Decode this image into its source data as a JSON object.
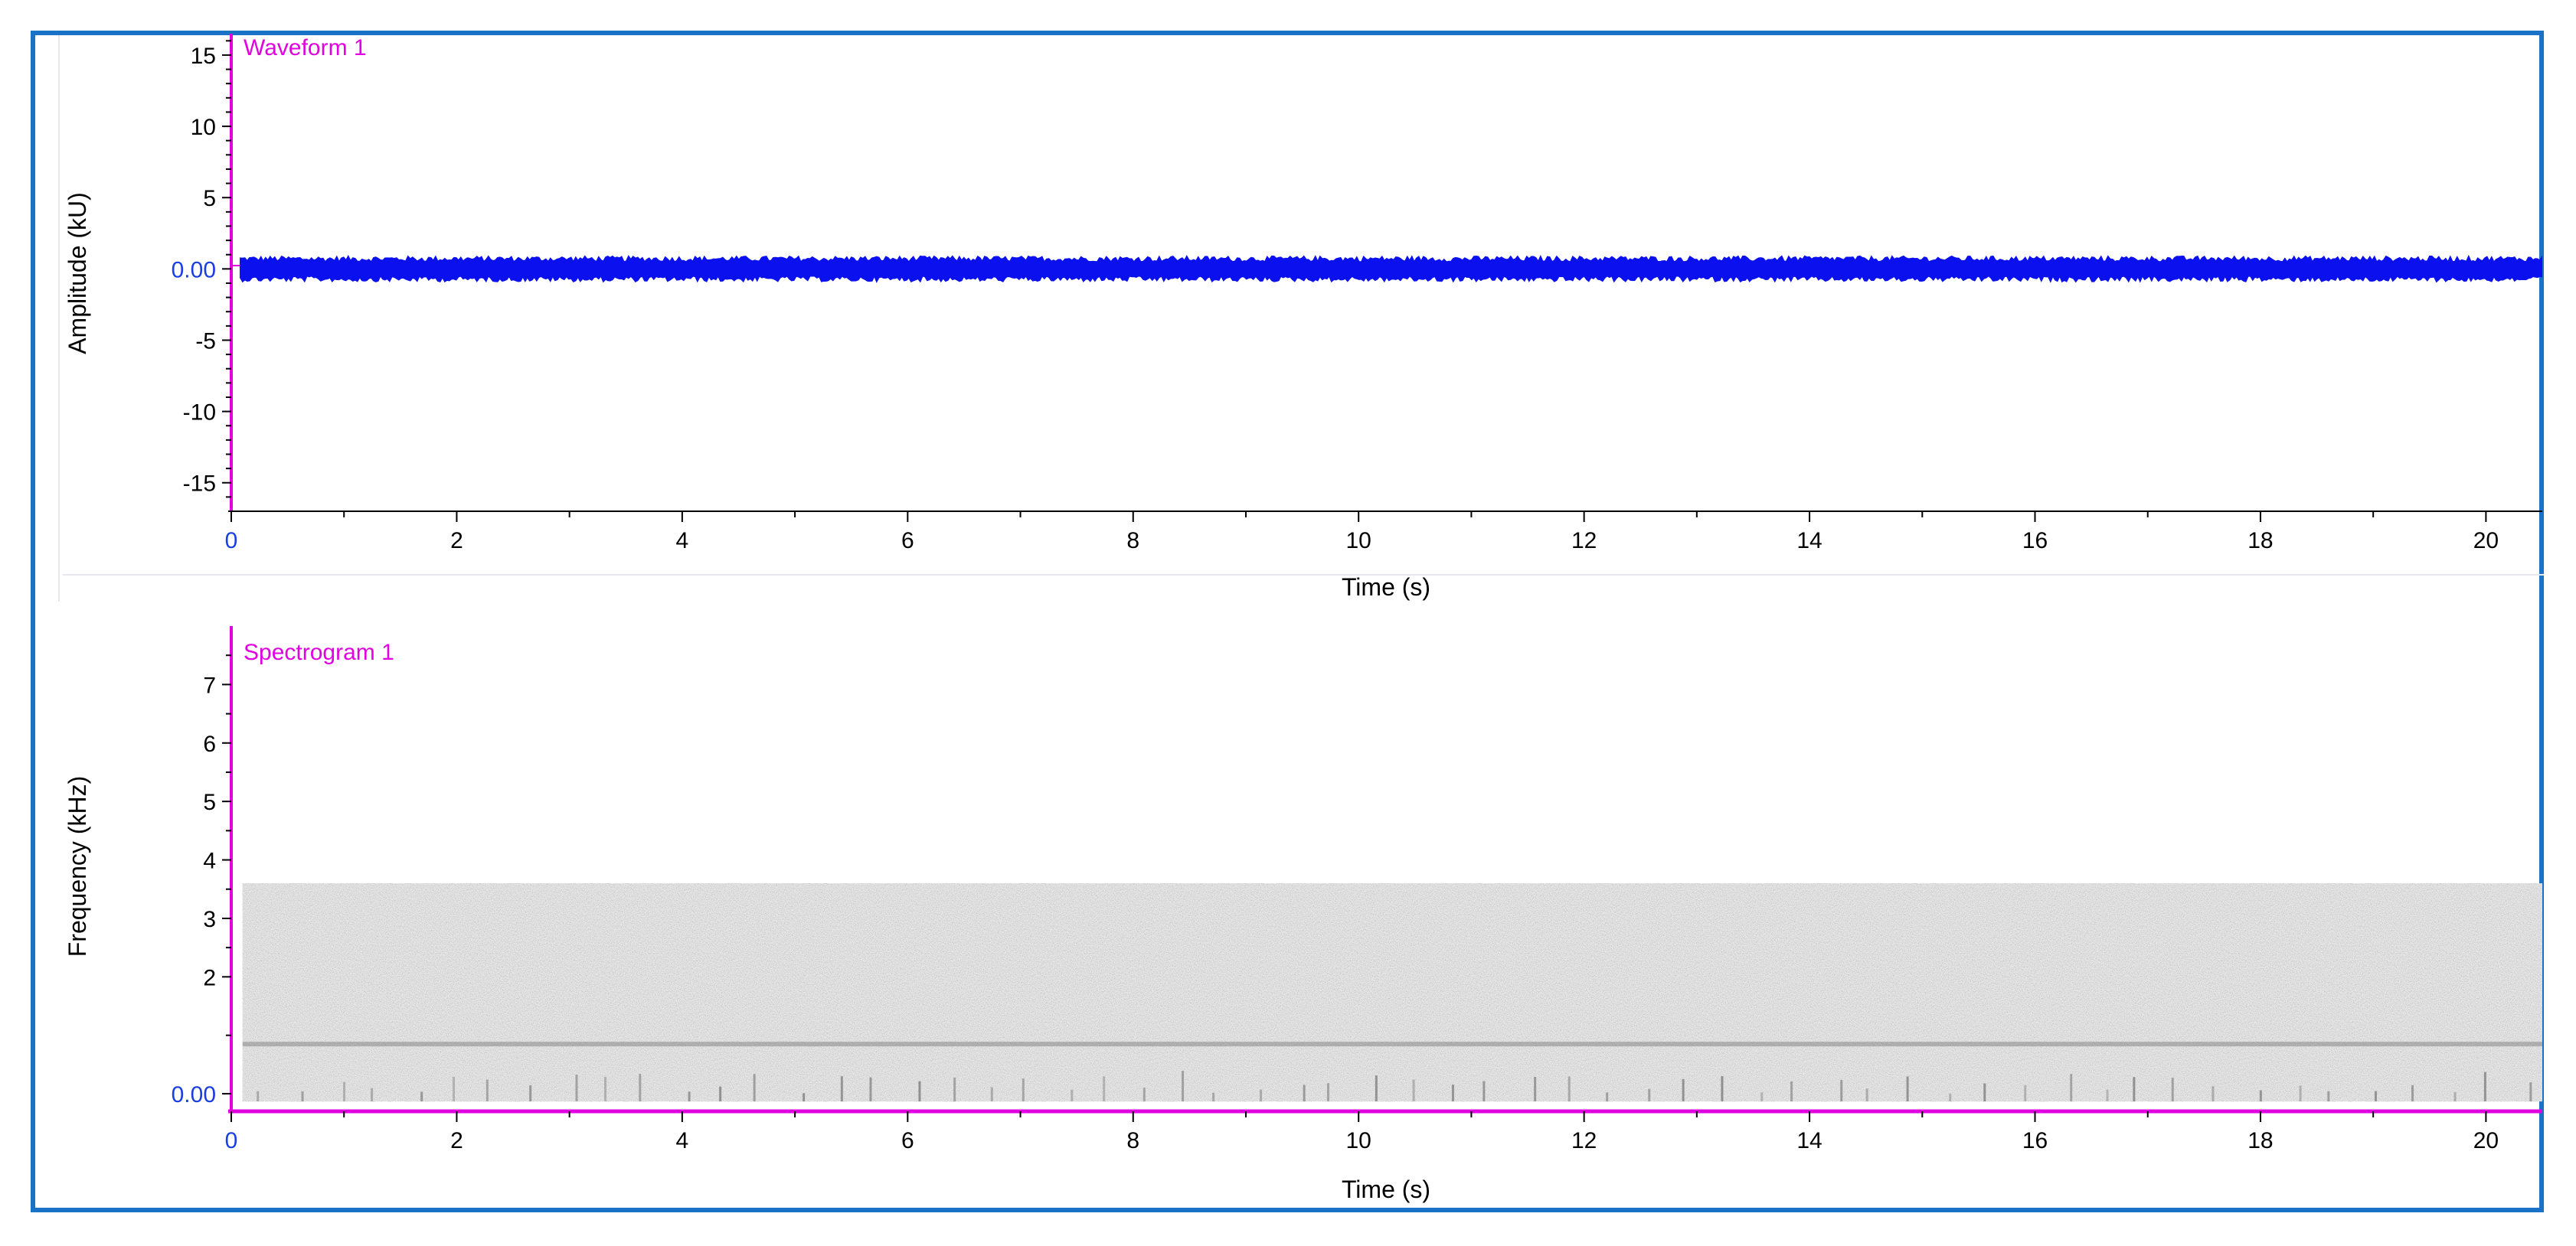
{
  "colors": {
    "frame": "#1b73c8",
    "axis_accent": "#e000e0",
    "zero_label": "#1a3fe0",
    "waveform": "#0a10ee",
    "tick_label": "#000000"
  },
  "chart_data": [
    {
      "type": "line",
      "title": "Waveform 1",
      "xlabel": "Time (s)",
      "ylabel": "Amplitude (kU)",
      "xlim": [
        0,
        20.5
      ],
      "ylim": [
        -17,
        16.5
      ],
      "xticks": [
        0,
        2,
        4,
        6,
        8,
        10,
        12,
        14,
        16,
        18,
        20
      ],
      "xtick_labels": [
        "0",
        "2",
        "4",
        "6",
        "8",
        "10",
        "12",
        "14",
        "16",
        "18",
        "20"
      ],
      "yticks": [
        15,
        10,
        5,
        0,
        -5,
        -10,
        -15
      ],
      "ytick_labels": [
        "15",
        "10",
        "5",
        "0.00",
        "-5",
        "-10",
        "-15"
      ],
      "series": [
        {
          "signal": "noise",
          "x_range": [
            0.08,
            20.5
          ],
          "mean": 0.0,
          "peak_amplitude": 0.9
        }
      ],
      "grid": false
    },
    {
      "type": "heatmap",
      "title": "Spectrogram 1",
      "xlabel": "Time (s)",
      "ylabel": "Frequency (kHz)",
      "xlim": [
        0,
        20.5
      ],
      "ylim": [
        -0.3,
        8
      ],
      "xticks": [
        0,
        2,
        4,
        6,
        8,
        10,
        12,
        14,
        16,
        18,
        20
      ],
      "xtick_labels": [
        "0",
        "2",
        "4",
        "6",
        "8",
        "10",
        "12",
        "14",
        "16",
        "18",
        "20"
      ],
      "yticks": [
        7,
        6,
        5,
        4,
        3,
        2,
        0
      ],
      "ytick_labels": [
        "7",
        "6",
        "5",
        "4",
        "3",
        "2",
        "0.00"
      ],
      "energy_region": {
        "time_range": [
          0.1,
          20.5
        ],
        "frequency_range": [
          0,
          3.6
        ]
      },
      "bands_khz": [
        0.85
      ],
      "colormap": "grayscale",
      "grid": false
    }
  ]
}
